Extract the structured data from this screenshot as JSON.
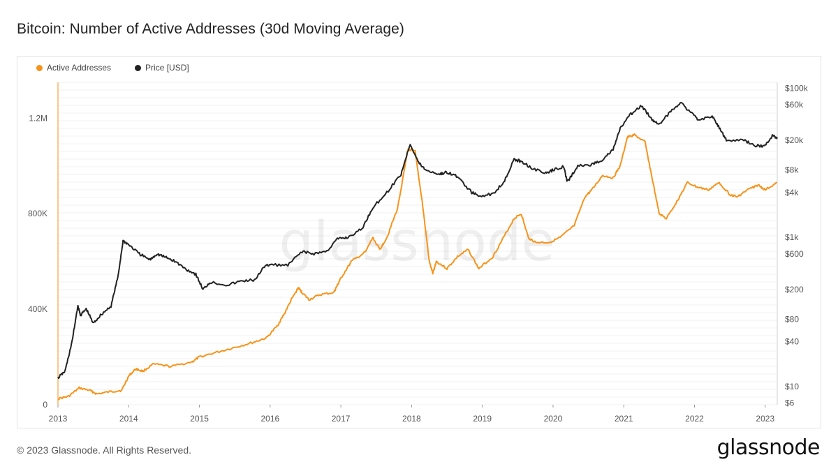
{
  "header": {
    "title": "Bitcoin: Number of Active Addresses (30d Moving Average)"
  },
  "legend": [
    {
      "label": "Active Addresses",
      "color": "#f7931a"
    },
    {
      "label": "Price [USD]",
      "color": "#222222"
    }
  ],
  "footer": {
    "copyright": "© 2023 Glassnode. All Rights Reserved.",
    "brand": "glassnode"
  },
  "chart_data": {
    "type": "line",
    "title": "Bitcoin: Number of Active Addresses (30d Moving Average)",
    "watermark": "glassnode",
    "x_ticks": [
      "2013",
      "2014",
      "2015",
      "2016",
      "2017",
      "2018",
      "2019",
      "2020",
      "2021",
      "2022",
      "2023"
    ],
    "x_range": [
      2013.0,
      2023.17
    ],
    "y_left": {
      "ticks": [
        "0",
        "400K",
        "800K",
        "1.2M"
      ],
      "tick_values": [
        0,
        400000,
        800000,
        1200000
      ],
      "range": [
        0,
        1350000
      ]
    },
    "y_right": {
      "scale": "log",
      "ticks": [
        "$6",
        "$10",
        "$40",
        "$80",
        "$200",
        "$600",
        "$1k",
        "$4k",
        "$8k",
        "$20k",
        "$60k",
        "$100k"
      ],
      "tick_values": [
        6,
        10,
        40,
        80,
        200,
        600,
        1000,
        4000,
        8000,
        20000,
        60000,
        100000
      ],
      "range": [
        5.7,
        120000
      ]
    },
    "grid": true,
    "legend_position": "top-left",
    "series": [
      {
        "name": "Active Addresses",
        "color": "#f7931a",
        "axis": "left",
        "points": [
          [
            2013.0,
            25000
          ],
          [
            2013.15,
            35000
          ],
          [
            2013.3,
            70000
          ],
          [
            2013.45,
            60000
          ],
          [
            2013.55,
            45000
          ],
          [
            2013.75,
            55000
          ],
          [
            2013.9,
            60000
          ],
          [
            2014.0,
            120000
          ],
          [
            2014.1,
            150000
          ],
          [
            2014.2,
            140000
          ],
          [
            2014.35,
            170000
          ],
          [
            2014.6,
            160000
          ],
          [
            2014.9,
            180000
          ],
          [
            2015.0,
            200000
          ],
          [
            2015.25,
            220000
          ],
          [
            2015.5,
            240000
          ],
          [
            2015.75,
            260000
          ],
          [
            2015.95,
            280000
          ],
          [
            2016.1,
            330000
          ],
          [
            2016.2,
            380000
          ],
          [
            2016.3,
            440000
          ],
          [
            2016.4,
            490000
          ],
          [
            2016.45,
            470000
          ],
          [
            2016.55,
            440000
          ],
          [
            2016.7,
            460000
          ],
          [
            2016.9,
            470000
          ],
          [
            2016.95,
            500000
          ],
          [
            2017.0,
            530000
          ],
          [
            2017.15,
            600000
          ],
          [
            2017.35,
            640000
          ],
          [
            2017.45,
            700000
          ],
          [
            2017.55,
            650000
          ],
          [
            2017.65,
            700000
          ],
          [
            2017.8,
            820000
          ],
          [
            2017.95,
            1070000
          ],
          [
            2018.05,
            1060000
          ],
          [
            2018.15,
            850000
          ],
          [
            2018.25,
            600000
          ],
          [
            2018.3,
            550000
          ],
          [
            2018.35,
            600000
          ],
          [
            2018.5,
            570000
          ],
          [
            2018.65,
            620000
          ],
          [
            2018.8,
            650000
          ],
          [
            2018.95,
            570000
          ],
          [
            2019.15,
            620000
          ],
          [
            2019.3,
            700000
          ],
          [
            2019.45,
            780000
          ],
          [
            2019.55,
            800000
          ],
          [
            2019.65,
            700000
          ],
          [
            2019.75,
            680000
          ],
          [
            2019.95,
            680000
          ],
          [
            2020.1,
            700000
          ],
          [
            2020.3,
            750000
          ],
          [
            2020.45,
            870000
          ],
          [
            2020.55,
            900000
          ],
          [
            2020.7,
            960000
          ],
          [
            2020.85,
            950000
          ],
          [
            2020.95,
            1000000
          ],
          [
            2021.05,
            1120000
          ],
          [
            2021.15,
            1130000
          ],
          [
            2021.3,
            1100000
          ],
          [
            2021.4,
            950000
          ],
          [
            2021.5,
            800000
          ],
          [
            2021.6,
            780000
          ],
          [
            2021.75,
            850000
          ],
          [
            2021.9,
            930000
          ],
          [
            2022.05,
            910000
          ],
          [
            2022.2,
            900000
          ],
          [
            2022.35,
            930000
          ],
          [
            2022.5,
            880000
          ],
          [
            2022.6,
            870000
          ],
          [
            2022.75,
            900000
          ],
          [
            2022.9,
            920000
          ],
          [
            2023.0,
            900000
          ],
          [
            2023.17,
            930000
          ]
        ]
      },
      {
        "name": "Price [USD]",
        "color": "#222222",
        "axis": "right",
        "points": [
          [
            2013.0,
            13
          ],
          [
            2013.1,
            16
          ],
          [
            2013.2,
            40
          ],
          [
            2013.28,
            120
          ],
          [
            2013.32,
            90
          ],
          [
            2013.4,
            110
          ],
          [
            2013.5,
            70
          ],
          [
            2013.6,
            90
          ],
          [
            2013.75,
            120
          ],
          [
            2013.85,
            300
          ],
          [
            2013.92,
            900
          ],
          [
            2014.0,
            800
          ],
          [
            2014.15,
            600
          ],
          [
            2014.3,
            500
          ],
          [
            2014.4,
            600
          ],
          [
            2014.5,
            550
          ],
          [
            2014.65,
            480
          ],
          [
            2014.8,
            380
          ],
          [
            2014.95,
            320
          ],
          [
            2015.05,
            200
          ],
          [
            2015.15,
            250
          ],
          [
            2015.4,
            230
          ],
          [
            2015.6,
            260
          ],
          [
            2015.8,
            270
          ],
          [
            2015.9,
            400
          ],
          [
            2016.0,
            430
          ],
          [
            2016.25,
            420
          ],
          [
            2016.45,
            650
          ],
          [
            2016.6,
            600
          ],
          [
            2016.8,
            650
          ],
          [
            2016.95,
            950
          ],
          [
            2017.1,
            1000
          ],
          [
            2017.3,
            1300
          ],
          [
            2017.45,
            2500
          ],
          [
            2017.65,
            4000
          ],
          [
            2017.85,
            7000
          ],
          [
            2017.98,
            18000
          ],
          [
            2018.1,
            10000
          ],
          [
            2018.2,
            8000
          ],
          [
            2018.4,
            7000
          ],
          [
            2018.5,
            7500
          ],
          [
            2018.65,
            6500
          ],
          [
            2018.85,
            4000
          ],
          [
            2018.95,
            3600
          ],
          [
            2019.15,
            3800
          ],
          [
            2019.3,
            5500
          ],
          [
            2019.45,
            11000
          ],
          [
            2019.55,
            10500
          ],
          [
            2019.7,
            8500
          ],
          [
            2019.9,
            7200
          ],
          [
            2020.0,
            8000
          ],
          [
            2020.15,
            9000
          ],
          [
            2020.2,
            5500
          ],
          [
            2020.35,
            9000
          ],
          [
            2020.55,
            9500
          ],
          [
            2020.7,
            11000
          ],
          [
            2020.85,
            15000
          ],
          [
            2020.95,
            29000
          ],
          [
            2021.1,
            45000
          ],
          [
            2021.25,
            58000
          ],
          [
            2021.4,
            38000
          ],
          [
            2021.5,
            33000
          ],
          [
            2021.65,
            47000
          ],
          [
            2021.8,
            65000
          ],
          [
            2021.95,
            47000
          ],
          [
            2022.05,
            38000
          ],
          [
            2022.25,
            42000
          ],
          [
            2022.35,
            30000
          ],
          [
            2022.45,
            20000
          ],
          [
            2022.7,
            20000
          ],
          [
            2022.85,
            17000
          ],
          [
            2023.0,
            16800
          ],
          [
            2023.1,
            23000
          ],
          [
            2023.17,
            22000
          ]
        ]
      }
    ]
  }
}
